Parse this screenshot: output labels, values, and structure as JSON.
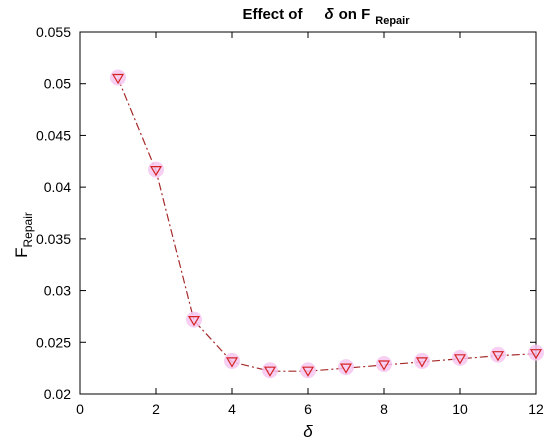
{
  "chart_data": {
    "type": "line",
    "title": {
      "prefix": "Effect of",
      "symbol": "δ",
      "middle": "on F",
      "subscript": "Repair"
    },
    "xlabel": "δ",
    "ylabel": {
      "main": "F",
      "subscript": "Repair"
    },
    "xlim": [
      0,
      12
    ],
    "ylim": [
      0.02,
      0.055
    ],
    "xticks": [
      0,
      2,
      4,
      6,
      8,
      10,
      12
    ],
    "xtick_labels": [
      "0",
      "2",
      "4",
      "6",
      "8",
      "10",
      "12"
    ],
    "yticks": [
      0.02,
      0.025,
      0.03,
      0.035,
      0.04,
      0.045,
      0.05,
      0.055
    ],
    "ytick_labels": [
      "0.02",
      "0.025",
      "0.03",
      "0.035",
      "0.04",
      "0.045",
      "0.05",
      "0.055"
    ],
    "grid": false,
    "series": [
      {
        "x": [
          1,
          2,
          3,
          4,
          5,
          6,
          7,
          8,
          9,
          10,
          11,
          12
        ],
        "y": [
          0.0505,
          0.0416,
          0.0271,
          0.0231,
          0.0222,
          0.0222,
          0.0225,
          0.0228,
          0.0231,
          0.0234,
          0.0237,
          0.0239
        ],
        "line_color": "#a52a2a",
        "marker_edge_color": "#d62424",
        "marker_glow_color": "#f4c7f0",
        "marker": "triangle-down",
        "line_style": "dash-dot"
      }
    ]
  }
}
